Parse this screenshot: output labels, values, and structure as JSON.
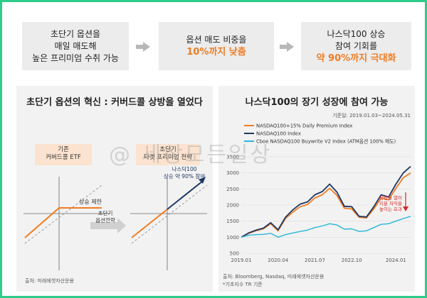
{
  "flow": {
    "box1": {
      "line1": "초단기 옵션을",
      "line2": "매일 매도해",
      "line3": "높은 프리미엄 수취 가능"
    },
    "box2": {
      "line1": "옵션 매도 비중을",
      "highlight": "10%까지 낮춤"
    },
    "box3": {
      "line1": "나스닥100 상승",
      "line2": "참여 기회를",
      "highlight": "약 90%까지 극대화"
    }
  },
  "left": {
    "title": "초단기 옵션의 혁신 : 커버드콜 상방을 열었다",
    "tag_existing": {
      "line1": "기존",
      "line2": "커버드콜 ETF"
    },
    "tag_new": {
      "line1": "초단기",
      "line2": "타겟 프리미엄 전략"
    },
    "cap_label": "상승 제한",
    "arrow_label": {
      "line1": "초단기",
      "line2": "옵션전략"
    },
    "participation": {
      "line1": "나스닥100",
      "line2": "상승 약 90% 참여"
    },
    "source": "출처: 미래에셋자산운용"
  },
  "right": {
    "title": "나스닥100의 장기 성장에 참여 가능",
    "period": "기준일: 2019.01.03~2024.05.31",
    "annotation": {
      "line1": "상방을 열어",
      "line2": "지분 차익을",
      "line3": "높이는 효과"
    },
    "source_line1": "출처: Bloomberg, Nasdaq, 미래에셋자산운용",
    "source_line2": "*기초지수 TR 기준"
  },
  "watermark": "@ 세상모든일상",
  "colors": {
    "orange": "#f07c22",
    "navy": "#1f3864",
    "cyan": "#29b6d6",
    "red": "#d62828",
    "gray": "#b8b8b8"
  },
  "chart_data": {
    "type": "line",
    "title": "나스닥100의 장기 성장에 참여 가능",
    "xlabel": "",
    "ylabel": "",
    "ylim": [
      500,
      3500
    ],
    "yticks": [
      500,
      1000,
      1500,
      2000,
      2500,
      3000,
      3500
    ],
    "xticks": [
      "2019.01",
      "2020.04",
      "2021.07",
      "2022.10",
      "2024.01"
    ],
    "x": [
      "2019.01",
      "2019.04",
      "2019.07",
      "2019.10",
      "2020.01",
      "2020.03",
      "2020.06",
      "2020.09",
      "2020.12",
      "2021.03",
      "2021.06",
      "2021.09",
      "2021.11",
      "2022.01",
      "2022.04",
      "2022.07",
      "2022.10",
      "2022.12",
      "2023.03",
      "2023.06",
      "2023.09",
      "2023.12",
      "2024.03",
      "2024.05"
    ],
    "series": [
      {
        "name": "NASDAQ100+15% Daily Premium Index",
        "color": "#f07c22",
        "values": [
          1000,
          1120,
          1200,
          1260,
          1420,
          1200,
          1580,
          1780,
          1950,
          2020,
          2220,
          2320,
          2520,
          2300,
          1900,
          1880,
          1620,
          1600,
          1880,
          2220,
          2160,
          2520,
          2850,
          3000
        ]
      },
      {
        "name": "NASDAQ100 Index",
        "color": "#1f3864",
        "values": [
          1000,
          1130,
          1220,
          1280,
          1450,
          1230,
          1620,
          1850,
          2030,
          2100,
          2320,
          2420,
          2650,
          2400,
          1960,
          1950,
          1650,
          1630,
          1950,
          2320,
          2250,
          2650,
          3000,
          3200
        ]
      },
      {
        "name": "Cboe NASDAQ100 Buywrite V2 Index (ATM옵션 100% 매도)",
        "color": "#29b6d6",
        "values": [
          1000,
          1060,
          1080,
          1090,
          1120,
          1000,
          1080,
          1130,
          1180,
          1220,
          1300,
          1350,
          1420,
          1380,
          1250,
          1260,
          1180,
          1200,
          1300,
          1400,
          1420,
          1500,
          1580,
          1650
        ]
      }
    ]
  }
}
